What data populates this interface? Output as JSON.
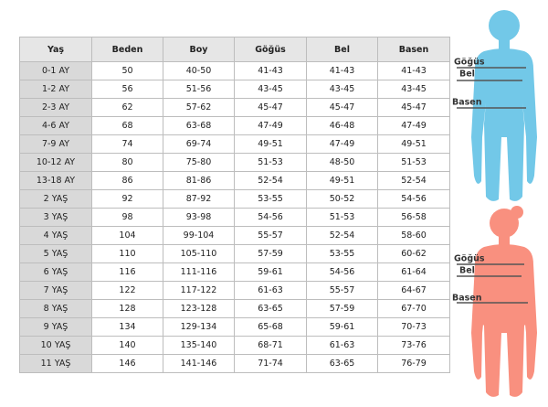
{
  "table": {
    "header": [
      "Yaş",
      "Beden",
      "Boy",
      "Göğüs",
      "Bel",
      "Basen"
    ],
    "rows": [
      [
        "0-1 AY",
        "50",
        "40-50",
        "41-43",
        "41-43",
        "41-43"
      ],
      [
        "1-2 AY",
        "56",
        "51-56",
        "43-45",
        "43-45",
        "43-45"
      ],
      [
        "2-3 AY",
        "62",
        "57-62",
        "45-47",
        "45-47",
        "45-47"
      ],
      [
        "4-6 AY",
        "68",
        "63-68",
        "47-49",
        "46-48",
        "47-49"
      ],
      [
        "7-9 AY",
        "74",
        "69-74",
        "49-51",
        "47-49",
        "49-51"
      ],
      [
        "10-12 AY",
        "80",
        "75-80",
        "51-53",
        "48-50",
        "51-53"
      ],
      [
        "13-18 AY",
        "86",
        "81-86",
        "52-54",
        "49-51",
        "52-54"
      ],
      [
        "2 YAŞ",
        "92",
        "87-92",
        "53-55",
        "50-52",
        "54-56"
      ],
      [
        "3 YAŞ",
        "98",
        "93-98",
        "54-56",
        "51-53",
        "56-58"
      ],
      [
        "4 YAŞ",
        "104",
        "99-104",
        "55-57",
        "52-54",
        "58-60"
      ],
      [
        "5 YAŞ",
        "110",
        "105-110",
        "57-59",
        "53-55",
        "60-62"
      ],
      [
        "6 YAŞ",
        "116",
        "111-116",
        "59-61",
        "54-56",
        "61-64"
      ],
      [
        "7 YAŞ",
        "122",
        "117-122",
        "61-63",
        "55-57",
        "64-67"
      ],
      [
        "8 YAŞ",
        "128",
        "123-128",
        "63-65",
        "57-59",
        "67-70"
      ],
      [
        "9 YAŞ",
        "134",
        "129-134",
        "65-68",
        "59-61",
        "70-73"
      ],
      [
        "10 YAŞ",
        "140",
        "135-140",
        "68-71",
        "61-63",
        "73-76"
      ],
      [
        "11 YAŞ",
        "146",
        "141-146",
        "71-74",
        "63-65",
        "76-79"
      ]
    ]
  },
  "figures": {
    "boy": {
      "chest": "Göğüs",
      "waist": "Bel",
      "hip": "Basen"
    },
    "girl": {
      "chest": "Göğüs",
      "waist": "Bel",
      "hip": "Basen"
    }
  }
}
